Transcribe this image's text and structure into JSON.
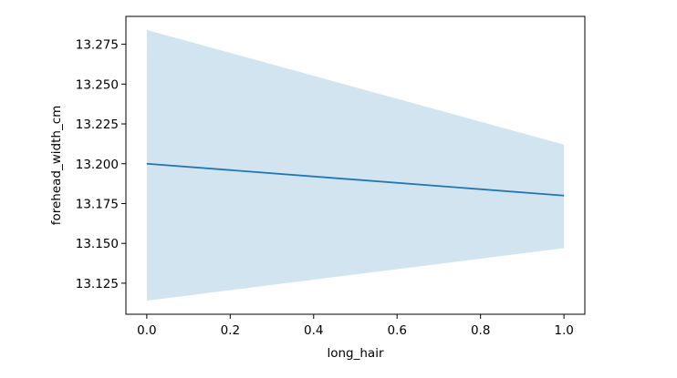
{
  "chart_data": {
    "type": "line",
    "xlabel": "long_hair",
    "ylabel": "forehead_width_cm",
    "xlim": [
      -0.05,
      1.05
    ],
    "ylim": [
      13.1055,
      13.2925
    ],
    "x_ticks": [
      0.0,
      0.2,
      0.4,
      0.6,
      0.8,
      1.0
    ],
    "x_tick_labels": [
      "0.0",
      "0.2",
      "0.4",
      "0.6",
      "0.8",
      "1.0"
    ],
    "y_ticks": [
      13.125,
      13.15,
      13.175,
      13.2,
      13.225,
      13.25,
      13.275
    ],
    "y_tick_labels": [
      "13.125",
      "13.150",
      "13.175",
      "13.200",
      "13.225",
      "13.250",
      "13.275"
    ],
    "grid": false,
    "series": [
      {
        "x": [
          0.0,
          1.0
        ],
        "y": [
          13.2,
          13.18
        ],
        "ci_lower": [
          13.114,
          13.147
        ],
        "ci_upper": [
          13.284,
          13.212
        ],
        "color": "#1f77b4",
        "band_color": "#1f77b4",
        "band_opacity": 0.2
      }
    ]
  }
}
